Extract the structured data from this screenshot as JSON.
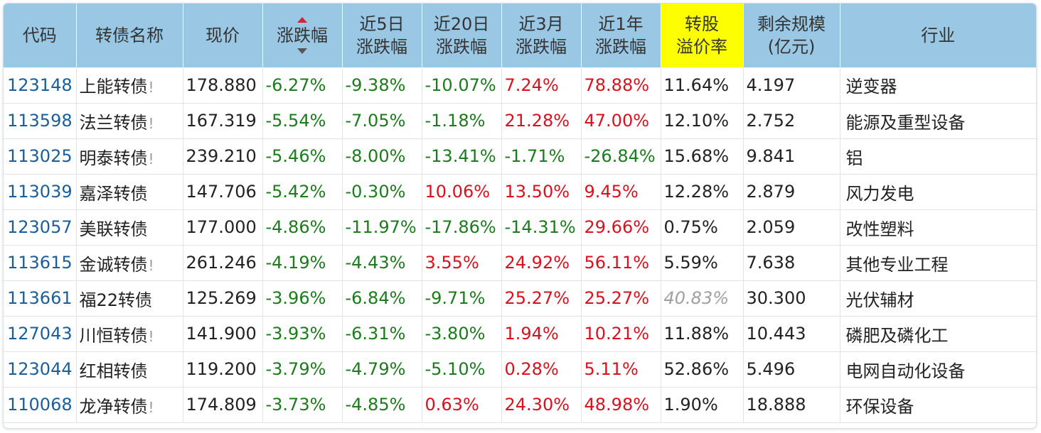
{
  "header": {
    "code": "代码",
    "name": "转债名称",
    "price": "现价",
    "change": "涨跌幅",
    "chg5d_l1": "近5日",
    "chg5d_l2": "涨跌幅",
    "chg20d_l1": "近20日",
    "chg20d_l2": "涨跌幅",
    "chg3m_l1": "近3月",
    "chg3m_l2": "涨跌幅",
    "chg1y_l1": "近1年",
    "chg1y_l2": "涨跌幅",
    "premium_l1": "转股",
    "premium_l2": "溢价率",
    "size_l1": "剩余规模",
    "size_l2": "(亿元)",
    "industry": "行业"
  },
  "colors": {
    "header_bg": "#9ac8e4",
    "highlight_header": "#fdff00",
    "negative": "#1d7a1d",
    "positive": "#d9101e",
    "code_link": "#1b5e99"
  },
  "rows": [
    {
      "code": "123148",
      "name": "上能转债",
      "warn": "!",
      "price": "178.880",
      "chg": "-6.27%",
      "chg5d": "-9.38%",
      "chg20d": "-10.07%",
      "chg3m": "7.24%",
      "chg1y": "78.88%",
      "premium": "11.64%",
      "size": "4.197",
      "industry": "逆变器"
    },
    {
      "code": "113598",
      "name": "法兰转债",
      "warn": "!",
      "price": "167.319",
      "chg": "-5.54%",
      "chg5d": "-7.05%",
      "chg20d": "-1.18%",
      "chg3m": "21.28%",
      "chg1y": "47.00%",
      "premium": "12.10%",
      "size": "2.752",
      "industry": "能源及重型设备"
    },
    {
      "code": "113025",
      "name": "明泰转债",
      "warn": "!",
      "price": "239.210",
      "chg": "-5.46%",
      "chg5d": "-8.00%",
      "chg20d": "-13.41%",
      "chg3m": "-1.71%",
      "chg1y": "-26.84%",
      "premium": "15.68%",
      "size": "9.841",
      "industry": "铝"
    },
    {
      "code": "113039",
      "name": "嘉泽转债",
      "warn": "",
      "price": "147.706",
      "chg": "-5.42%",
      "chg5d": "-0.30%",
      "chg20d": "10.06%",
      "chg3m": "13.50%",
      "chg1y": "9.45%",
      "premium": "12.28%",
      "size": "2.879",
      "industry": "风力发电"
    },
    {
      "code": "123057",
      "name": "美联转债",
      "warn": "",
      "price": "177.000",
      "chg": "-4.86%",
      "chg5d": "-11.97%",
      "chg20d": "-17.86%",
      "chg3m": "-14.31%",
      "chg1y": "29.66%",
      "premium": "0.75%",
      "size": "2.059",
      "industry": "改性塑料"
    },
    {
      "code": "113615",
      "name": "金诚转债",
      "warn": "!",
      "price": "261.246",
      "chg": "-4.19%",
      "chg5d": "-4.43%",
      "chg20d": "3.55%",
      "chg3m": "24.92%",
      "chg1y": "56.11%",
      "premium": "5.59%",
      "size": "7.638",
      "industry": "其他专业工程"
    },
    {
      "code": "113661",
      "name": "福22转债",
      "warn": "",
      "price": "125.269",
      "chg": "-3.96%",
      "chg5d": "-6.84%",
      "chg20d": "-9.71%",
      "chg3m": "25.27%",
      "chg1y": "25.27%",
      "premium": "40.83%",
      "size": "30.300",
      "industry": "光伏辅材"
    },
    {
      "code": "127043",
      "name": "川恒转债",
      "warn": "!",
      "price": "141.900",
      "chg": "-3.93%",
      "chg5d": "-6.31%",
      "chg20d": "-3.80%",
      "chg3m": "1.94%",
      "chg1y": "10.21%",
      "premium": "11.88%",
      "size": "10.443",
      "industry": "磷肥及磷化工"
    },
    {
      "code": "123044",
      "name": "红相转债",
      "warn": "",
      "price": "119.200",
      "chg": "-3.79%",
      "chg5d": "-4.79%",
      "chg20d": "-5.10%",
      "chg3m": "0.28%",
      "chg1y": "5.11%",
      "premium": "52.86%",
      "size": "5.496",
      "industry": "电网自动化设备"
    },
    {
      "code": "110068",
      "name": "龙净转债",
      "warn": "!",
      "price": "174.809",
      "chg": "-3.73%",
      "chg5d": "-4.85%",
      "chg20d": "0.63%",
      "chg3m": "24.30%",
      "chg1y": "48.98%",
      "premium": "1.90%",
      "size": "18.888",
      "industry": "环保设备"
    }
  ]
}
